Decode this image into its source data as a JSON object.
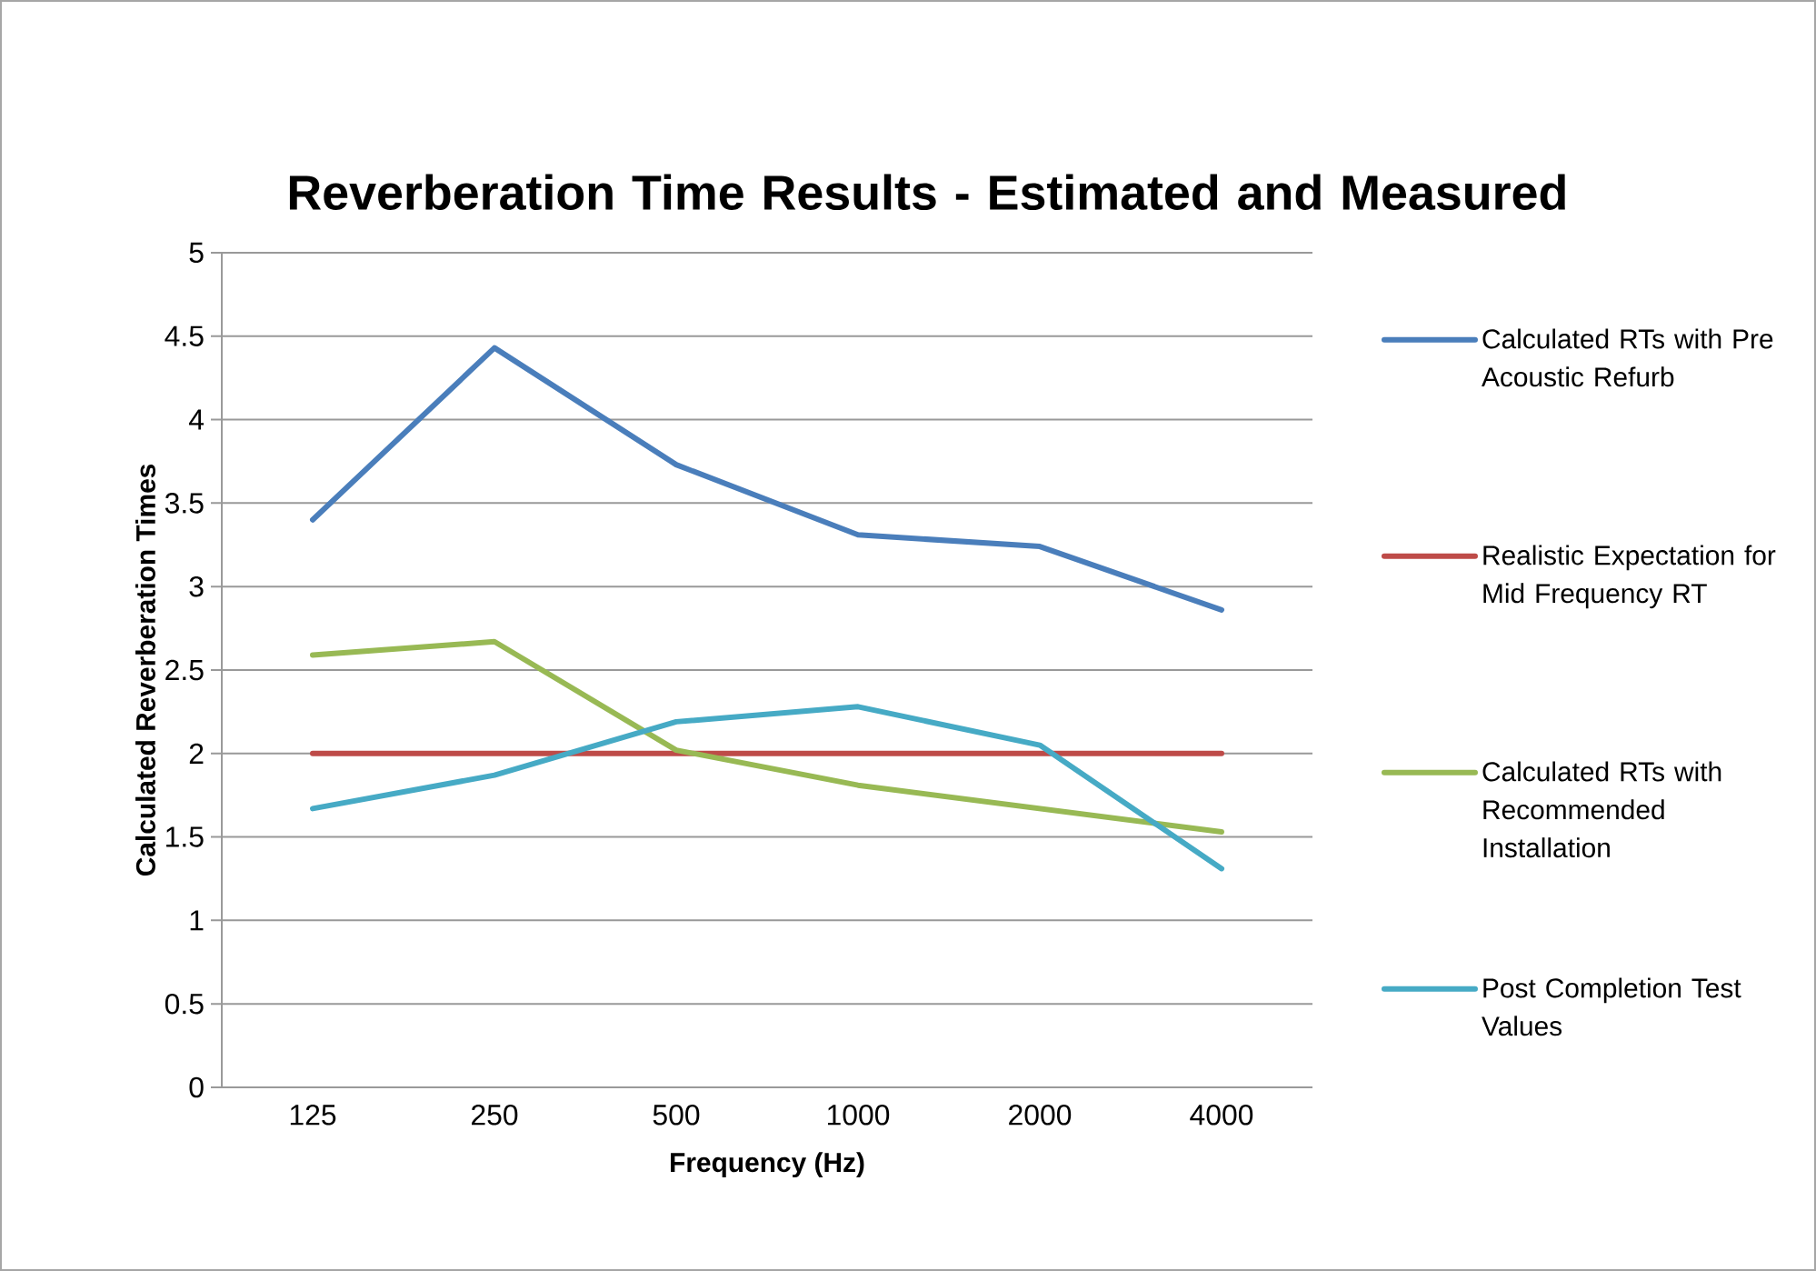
{
  "chart_data": {
    "type": "line",
    "title": "Reverberation Time Results -  Estimated and Measured",
    "xlabel": "Frequency (Hz)",
    "ylabel": "Calculated Reverberation Times",
    "categories": [
      "125",
      "250",
      "500",
      "1000",
      "2000",
      "4000"
    ],
    "series": [
      {
        "name": "Calculated RTs with Pre Acoustic Refurb",
        "color": "#4a7ebb",
        "values": [
          3.4,
          4.43,
          3.73,
          3.31,
          3.24,
          2.86
        ]
      },
      {
        "name": "Realistic Expectation for Mid Frequency RT",
        "color": "#be4b48",
        "values": [
          2,
          2,
          2,
          2,
          2,
          2
        ]
      },
      {
        "name": "Calculated RTs with Recommended Installation",
        "color": "#98b954",
        "values": [
          2.59,
          2.67,
          2.02,
          1.81,
          1.67,
          1.53
        ]
      },
      {
        "name": "Post Completion Test Values",
        "color": "#46aac5",
        "values": [
          1.67,
          1.87,
          2.19,
          2.28,
          2.05,
          1.31
        ]
      }
    ],
    "ylim": [
      0,
      5
    ],
    "yticks": [
      0,
      0.5,
      1,
      1.5,
      2,
      2.5,
      3,
      3.5,
      4,
      4.5,
      5
    ],
    "grid": "y",
    "legend": "right"
  }
}
